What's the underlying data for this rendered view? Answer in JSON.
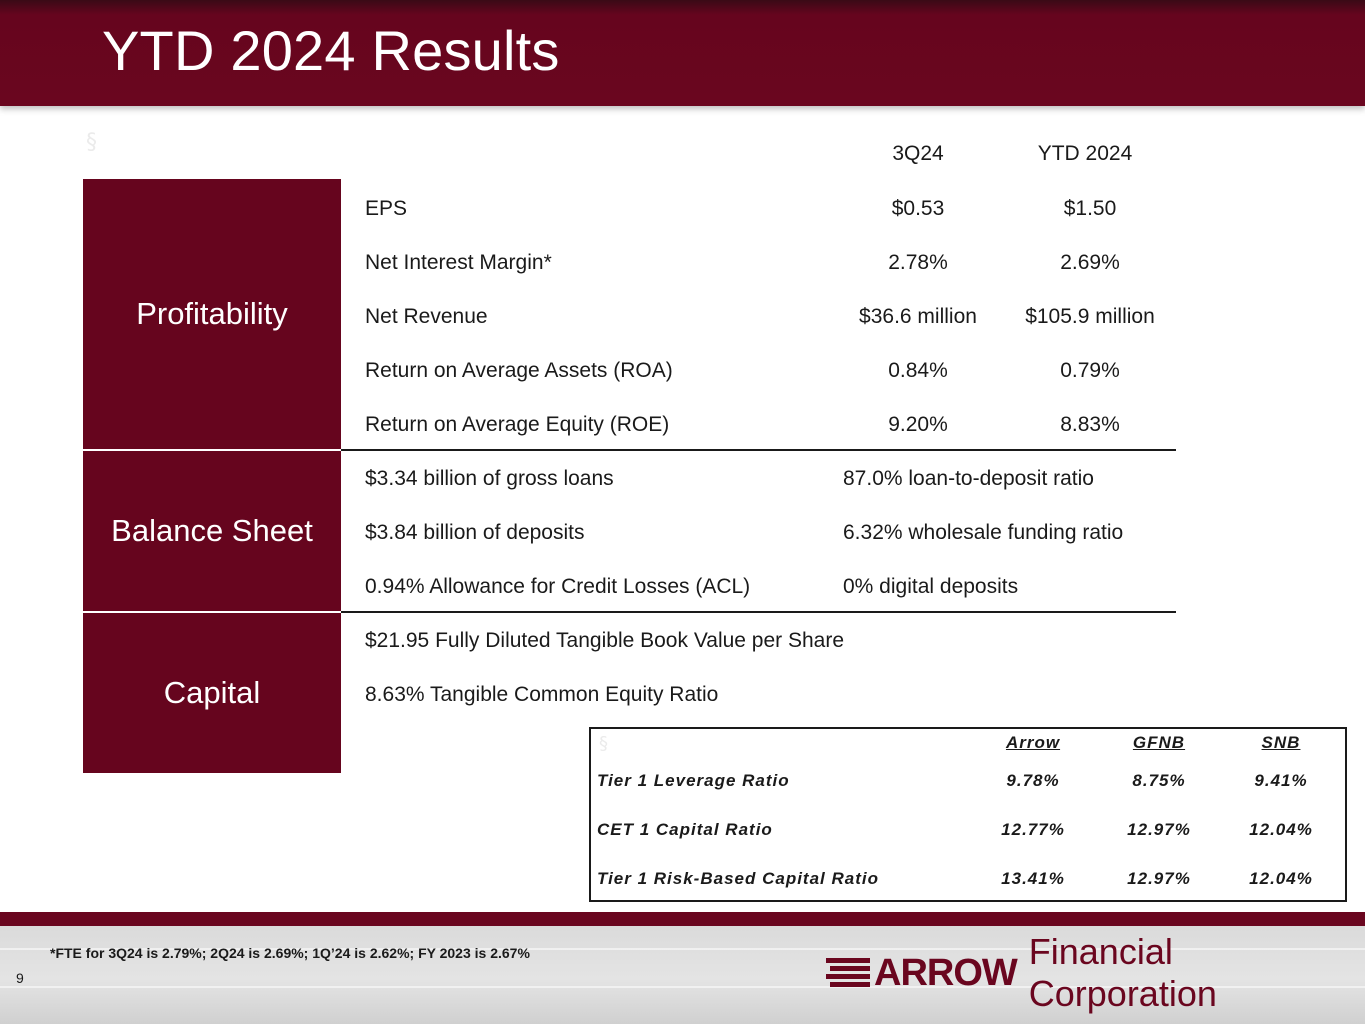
{
  "page": {
    "title": "YTD 2024 Results",
    "page_number": "9",
    "footnote": "*FTE for 3Q24 is 2.79%; 2Q24 is 2.69%; 1Q’24 is 2.62%; FY 2023 is 2.67%"
  },
  "columns": {
    "col1": "3Q24",
    "col2": "YTD 2024"
  },
  "sections": {
    "profitability": {
      "label": "Profitability",
      "rows": [
        {
          "label": "EPS",
          "q": "$0.53",
          "ytd": "$1.50"
        },
        {
          "label": "Net Interest Margin*",
          "q": "2.78%",
          "ytd": "2.69%"
        },
        {
          "label": "Net Revenue",
          "q": "$36.6 million",
          "ytd": "$105.9 million"
        },
        {
          "label": "Return on Average Assets (ROA)",
          "q": "0.84%",
          "ytd": "0.79%"
        },
        {
          "label": "Return on Average Equity (ROE)",
          "q": "9.20%",
          "ytd": "8.83%"
        }
      ]
    },
    "balance_sheet": {
      "label": "Balance Sheet",
      "rows": [
        {
          "left": "$3.34 billion of gross loans",
          "right": "87.0% loan-to-deposit ratio"
        },
        {
          "left": "$3.84 billion of deposits",
          "right": "6.32% wholesale funding ratio"
        },
        {
          "left": "0.94% Allowance for Credit Losses (ACL)",
          "right": "0% digital deposits"
        }
      ]
    },
    "capital": {
      "label": "Capital",
      "rows": [
        "$21.95 Fully Diluted Tangible Book Value per Share",
        "8.63% Tangible Common Equity Ratio"
      ]
    }
  },
  "capital_table": {
    "headers": [
      "Arrow",
      "GFNB",
      "SNB"
    ],
    "rows": [
      {
        "label": "Tier 1 Leverage Ratio",
        "values": [
          "9.78%",
          "8.75%",
          "9.41%"
        ]
      },
      {
        "label": "CET 1 Capital Ratio",
        "values": [
          "12.77%",
          "12.97%",
          "12.04%"
        ]
      },
      {
        "label": "Tier 1 Risk-Based Capital Ratio",
        "values": [
          "13.41%",
          "12.97%",
          "12.04%"
        ]
      }
    ]
  },
  "logo": {
    "mark": "ARROW",
    "text": "Financial Corporation",
    "color": "#6a061f"
  },
  "colors": {
    "brand": "#66051e",
    "text": "#1a1a1a"
  }
}
